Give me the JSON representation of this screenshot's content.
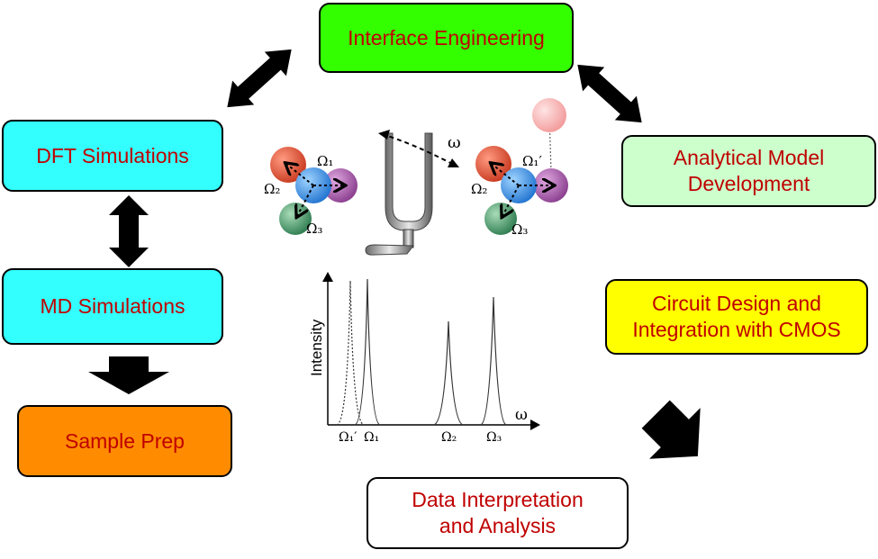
{
  "boxes": {
    "interface": {
      "label": "Interface Engineering",
      "color": "#33ff00"
    },
    "dft": {
      "label": "DFT Simulations",
      "color": "#33ffff"
    },
    "md": {
      "label": "MD Simulations",
      "color": "#33ffff"
    },
    "sample": {
      "label": "Sample Prep",
      "color": "#ff8c00"
    },
    "analytical": {
      "label_line1": "Analytical Model",
      "label_line2": "Development",
      "color": "#ccffcc"
    },
    "circuit": {
      "label_line1": "Circuit Design and",
      "label_line2": "Integration with CMOS",
      "color": "#ffff00"
    },
    "data": {
      "label_line1": "Data Interpretation",
      "label_line2": "and Analysis",
      "color": "#ffffff"
    }
  },
  "molecule_left": {
    "labels": {
      "omega1": "Ω₁",
      "omega2": "Ω₂",
      "omega3": "Ω₃"
    }
  },
  "fork": {
    "label": "ω"
  },
  "molecule_right": {
    "labels": {
      "omega1": "Ω₁′",
      "omega2": "Ω₂",
      "omega3": "Ω₃"
    }
  },
  "spectrum": {
    "ylabel": "Intensity",
    "xlabel": "ω",
    "peaks": {
      "p1prime": "Ω₁′",
      "p1": "Ω₁",
      "p2": "Ω₂",
      "p3": "Ω₃"
    }
  },
  "text_color": "#c00000"
}
